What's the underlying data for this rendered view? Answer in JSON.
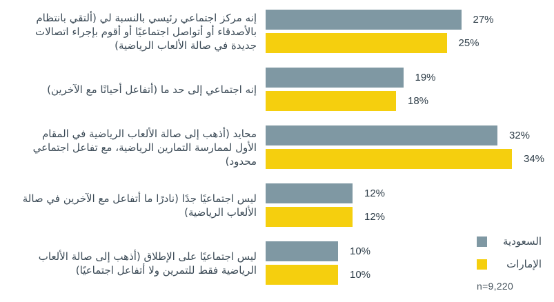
{
  "chart_data": {
    "type": "bar",
    "orientation": "horizontal",
    "categories": [
      "إنه مركز اجتماعي رئيسي بالنسبة لي (ألتقي بانتظام بالأصدقاء أو أتواصل اجتماعيًا أو أقوم بإجراء اتصالات جديدة في صالة الألعاب الرياضية)",
      "إنه اجتماعي إلى حد ما (أتفاعل أحيانًا مع الآخرين)",
      "محايد (أذهب إلى صالة الألعاب الرياضية في المقام الأول لممارسة التمارين الرياضية، مع تفاعل اجتماعي محدود)",
      "ليس اجتماعيًا جدًا (نادرًا ما أتفاعل مع الآخرين في صالة الألعاب الرياضية)",
      "ليس اجتماعيًا على الإطلاق (أذهب إلى صالة الألعاب الرياضية فقط للتمرين ولا أتفاعل اجتماعيًا)"
    ],
    "series": [
      {
        "key": "saudi-arabia",
        "name": "السعودية",
        "color": "#7F98A3",
        "values": [
          27,
          19,
          32,
          12,
          10
        ]
      },
      {
        "key": "uae",
        "name": "الإمارات",
        "color": "#F5CF0E",
        "values": [
          25,
          18,
          34,
          12,
          10
        ]
      }
    ],
    "value_suffix": "%",
    "xlim": [
      0,
      34
    ],
    "grid": false,
    "legend_position": "bottom-right",
    "sample_note": "n=9,220"
  }
}
